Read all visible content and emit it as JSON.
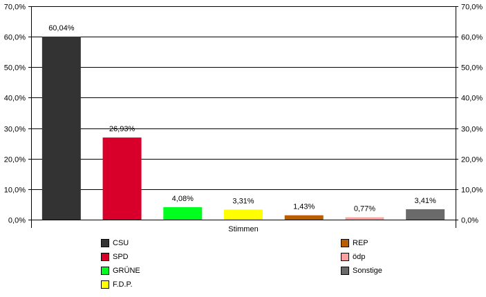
{
  "chart_data": {
    "type": "bar",
    "xlabel": "Stimmen",
    "ylabel": "",
    "ylim": [
      0,
      70
    ],
    "yticks": [
      "0,0%",
      "10,0%",
      "20,0%",
      "30,0%",
      "40,0%",
      "50,0%",
      "60,0%",
      "70,0%"
    ],
    "grid": true,
    "legend_position": "bottom",
    "series": [
      {
        "name": "CSU",
        "value": 60.04,
        "label": "60,04%",
        "color": "#333333"
      },
      {
        "name": "SPD",
        "value": 26.93,
        "label": "26,93%",
        "color": "#d8002a"
      },
      {
        "name": "GRÜNE",
        "value": 4.08,
        "label": "4,08%",
        "color": "#00ff1e"
      },
      {
        "name": "F.D.P.",
        "value": 3.31,
        "label": "3,31%",
        "color": "#ffff00"
      },
      {
        "name": "REP",
        "value": 1.43,
        "label": "1,43%",
        "color": "#b85d00"
      },
      {
        "name": "ödp",
        "value": 0.77,
        "label": "0,77%",
        "color": "#ffa0a0"
      },
      {
        "name": "Sonstige",
        "value": 3.41,
        "label": "3,41%",
        "color": "#6a6a6a"
      }
    ]
  }
}
